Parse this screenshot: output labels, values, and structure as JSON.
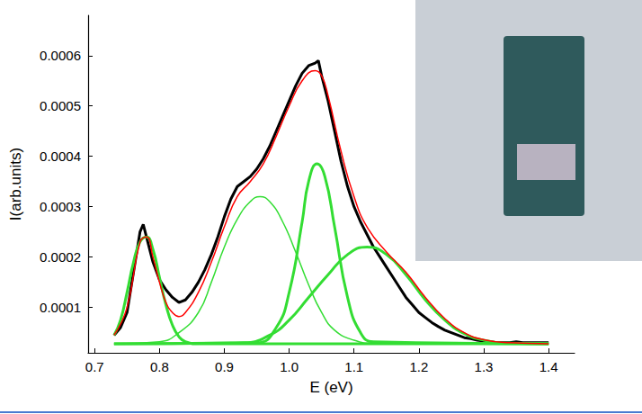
{
  "chart_data": {
    "type": "line",
    "x_label": "E (eV)",
    "y_label": "I(arb.units)",
    "xlim": [
      0.69,
      1.44
    ],
    "xticks": [
      0.7,
      0.8,
      0.9,
      {
        "value": 1.0,
        "label": "1.0"
      },
      1.1,
      1.2,
      1.3,
      1.4
    ],
    "ylim": [
      1e-05,
      0.00068
    ],
    "yticks": [
      0.0001,
      0.0002,
      0.0003,
      0.0004,
      0.0005,
      0.0006
    ],
    "grid": false,
    "series": [
      {
        "color": "#000000",
        "line_style": "thick",
        "x": [
          0.73,
          0.74,
          0.75,
          0.76,
          0.77,
          0.775,
          0.78,
          0.79,
          0.8,
          0.81,
          0.82,
          0.83,
          0.84,
          0.85,
          0.86,
          0.87,
          0.88,
          0.89,
          0.9,
          0.91,
          0.92,
          0.93,
          0.94,
          0.95,
          0.96,
          0.97,
          0.98,
          0.99,
          1.0,
          1.01,
          1.02,
          1.03,
          1.04,
          1.045,
          1.05,
          1.06,
          1.07,
          1.08,
          1.09,
          1.1,
          1.11,
          1.12,
          1.13,
          1.14,
          1.15,
          1.16,
          1.17,
          1.18,
          1.19,
          1.2,
          1.21,
          1.22,
          1.23,
          1.24,
          1.25,
          1.26,
          1.27,
          1.28,
          1.29,
          1.3,
          1.31,
          1.32,
          1.33,
          1.34,
          1.35,
          1.36,
          1.37,
          1.38,
          1.39,
          1.4
        ],
        "values": [
          4.5e-05,
          6e-05,
          9e-05,
          0.00017,
          0.00025,
          0.000265,
          0.00024,
          0.00019,
          0.000155,
          0.000135,
          0.00012,
          0.00011,
          0.000115,
          0.00013,
          0.00015,
          0.000175,
          0.000205,
          0.00024,
          0.00028,
          0.000315,
          0.00034,
          0.00035,
          0.00036,
          0.000375,
          0.000395,
          0.00042,
          0.00045,
          0.00048,
          0.00051,
          0.00054,
          0.000565,
          0.00058,
          0.000585,
          0.00059,
          0.00056,
          0.00051,
          0.00045,
          0.00039,
          0.00034,
          0.0003,
          0.00027,
          0.000245,
          0.00022,
          0.0002,
          0.00018,
          0.00016,
          0.00014,
          0.00012,
          0.000105,
          9e-05,
          8e-05,
          7e-05,
          6.2e-05,
          5.5e-05,
          5e-05,
          4.5e-05,
          4e-05,
          3.8e-05,
          3.5e-05,
          3.3e-05,
          3.2e-05,
          3e-05,
          3e-05,
          3e-05,
          3.2e-05,
          3e-05,
          3e-05,
          3e-05,
          3e-05,
          3e-05
        ]
      },
      {
        "color": "#ff0000",
        "line_style": "thin",
        "x": [
          0.73,
          0.75,
          0.77,
          0.78,
          0.79,
          0.8,
          0.81,
          0.82,
          0.83,
          0.84,
          0.86,
          0.88,
          0.9,
          0.92,
          0.94,
          0.96,
          0.98,
          1.0,
          1.02,
          1.04,
          1.05,
          1.06,
          1.08,
          1.1,
          1.12,
          1.15,
          1.18,
          1.21,
          1.24,
          1.27,
          1.3,
          1.34,
          1.4
        ],
        "values": [
          4.5e-05,
          0.0001,
          0.00023,
          0.00024,
          0.0002,
          0.00015,
          0.00011,
          9e-05,
          8.2e-05,
          9e-05,
          0.00013,
          0.00019,
          0.00026,
          0.00032,
          0.00035,
          0.000385,
          0.00044,
          0.0005,
          0.00055,
          0.00057,
          0.00056,
          0.00052,
          0.00041,
          0.00032,
          0.00026,
          0.00021,
          0.00017,
          0.00012,
          7.8e-05,
          5e-05,
          3.6e-05,
          3e-05,
          2.8e-05
        ]
      },
      {
        "color": "#33dd33",
        "line_style": "thick",
        "x": [
          0.73,
          0.74,
          0.75,
          0.76,
          0.77,
          0.78,
          0.79,
          0.8,
          0.81,
          0.82,
          0.83,
          0.84,
          0.86,
          1.4
        ],
        "values": [
          4.5e-05,
          7.5e-05,
          0.00013,
          0.00019,
          0.00023,
          0.00024,
          0.000215,
          0.00016,
          0.000105,
          6.5e-05,
          4.2e-05,
          3.2e-05,
          2.8e-05,
          2.8e-05
        ]
      },
      {
        "color": "#33dd33",
        "line_style": "thin",
        "x": [
          0.73,
          0.8,
          0.83,
          0.86,
          0.88,
          0.9,
          0.92,
          0.94,
          0.955,
          0.97,
          0.99,
          1.01,
          1.03,
          1.05,
          1.07,
          1.1,
          1.13,
          1.4
        ],
        "values": [
          2.8e-05,
          3.2e-05,
          5e-05,
          9e-05,
          0.00015,
          0.00022,
          0.000275,
          0.00031,
          0.00032,
          0.00031,
          0.00027,
          0.00021,
          0.000145,
          9e-05,
          5.5e-05,
          3.5e-05,
          2.9e-05,
          2.8e-05
        ]
      },
      {
        "color": "#33dd33",
        "line_style": "thick",
        "x": [
          0.73,
          0.95,
          0.98,
          1.0,
          1.02,
          1.03,
          1.043,
          1.055,
          1.07,
          1.09,
          1.11,
          1.13,
          1.4
        ],
        "values": [
          2.8e-05,
          3e-05,
          6e-05,
          0.00013,
          0.00027,
          0.00035,
          0.000385,
          0.00036,
          0.00026,
          0.00012,
          5e-05,
          3.2e-05,
          2.8e-05
        ]
      },
      {
        "color": "#33dd33",
        "line_style": "thick",
        "x": [
          0.73,
          0.93,
          0.97,
          1.0,
          1.03,
          1.06,
          1.09,
          1.12,
          1.15,
          1.18,
          1.21,
          1.24,
          1.27,
          1.3,
          1.34,
          1.4
        ],
        "values": [
          2.8e-05,
          3e-05,
          4.5e-05,
          7.5e-05,
          0.00012,
          0.000165,
          0.000205,
          0.00022,
          0.000205,
          0.000165,
          0.000115,
          7.5e-05,
          4.8e-05,
          3.5e-05,
          2.9e-05,
          2.8e-05
        ]
      }
    ]
  }
}
